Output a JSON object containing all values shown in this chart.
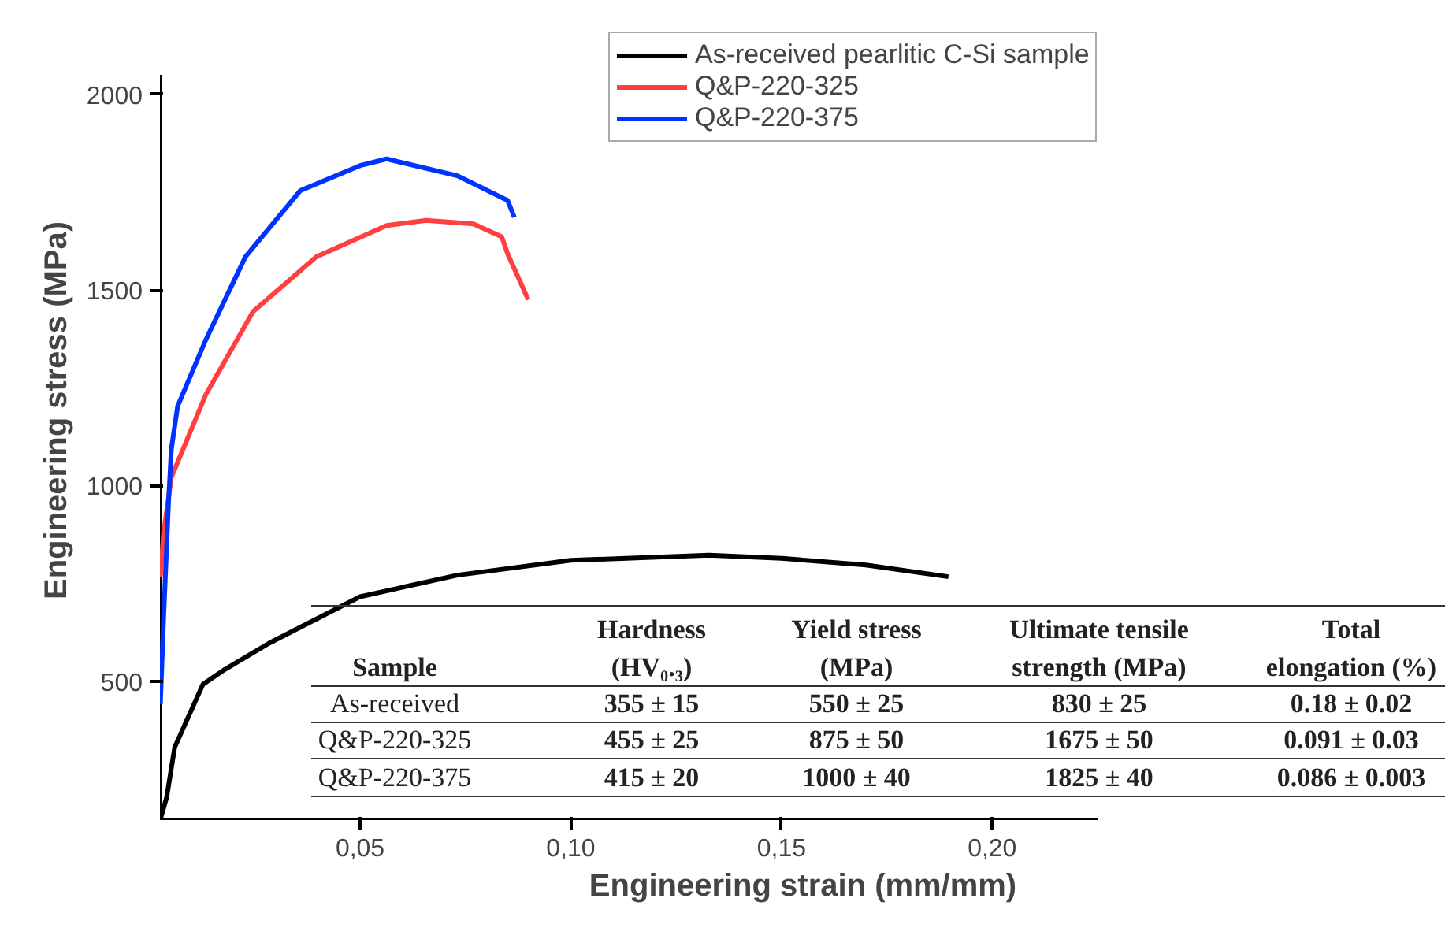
{
  "chart_data": {
    "type": "line",
    "xlabel": "Engineering strain (mm/mm)",
    "ylabel": "Engineering stress (MPa)",
    "xlim": [
      0.0025,
      0.225
    ],
    "ylim": [
      145,
      2050
    ],
    "xticks": [
      {
        "value": 0.05,
        "label": "0,05"
      },
      {
        "value": 0.1,
        "label": "0,10"
      },
      {
        "value": 0.15,
        "label": "0,15"
      },
      {
        "value": 0.2,
        "label": "0,20"
      }
    ],
    "yticks": [
      500,
      1000,
      1500,
      2000
    ],
    "grid": false,
    "legend": "top right",
    "marker": "none",
    "line_style": "solid",
    "series": [
      {
        "name": "As-received pearlitic C-Si sample",
        "color": "#000000",
        "x": [
          0.0026,
          0.0041,
          0.006,
          0.0127,
          0.0179,
          0.0284,
          0.05,
          0.0731,
          0.1,
          0.1328,
          0.15,
          0.17,
          0.1896
        ],
        "values": [
          147,
          203,
          331,
          492,
          530,
          597,
          716,
          771,
          809,
          822,
          814,
          797,
          767
        ]
      },
      {
        "name": "Q&P-220-325",
        "color": "#ff4040",
        "x": [
          0.0026,
          0.0034,
          0.0052,
          0.0134,
          0.0246,
          0.0396,
          0.0563,
          0.0657,
          0.0769,
          0.0836,
          0.085,
          0.0899
        ],
        "values": [
          767,
          881,
          1021,
          1233,
          1445,
          1585,
          1665,
          1678,
          1669,
          1636,
          1593,
          1475
        ]
      },
      {
        "name": "Q&P-220-375",
        "color": "#0033ff",
        "x": [
          0.0026,
          0.0034,
          0.0045,
          0.0052,
          0.0067,
          0.0134,
          0.0228,
          0.0358,
          0.05,
          0.0563,
          0.0731,
          0.085,
          0.0866
        ],
        "values": [
          441,
          669,
          949,
          1093,
          1203,
          1373,
          1585,
          1754,
          1818,
          1835,
          1792,
          1729,
          1686
        ]
      }
    ],
    "annotations": [
      "Sample",
      "Hardness\n(HV₀.₃)",
      "Yield stress\n(MPa)",
      "Ultimate tensile\nstrength (MPa)",
      "Total\nelongation (%)",
      "As-received",
      "355 ± 15",
      "550 ± 25",
      "830 ± 25",
      "0.18 ± 0.02",
      "Q&P-220-325",
      "455 ± 25",
      "875 ± 50",
      "1675 ± 50",
      "0.091 ± 0.03",
      "Q&P-220-375",
      "415 ± 20",
      "1000 ± 40",
      "1825 ± 40",
      "0.086 ± 0.003"
    ]
  }
}
